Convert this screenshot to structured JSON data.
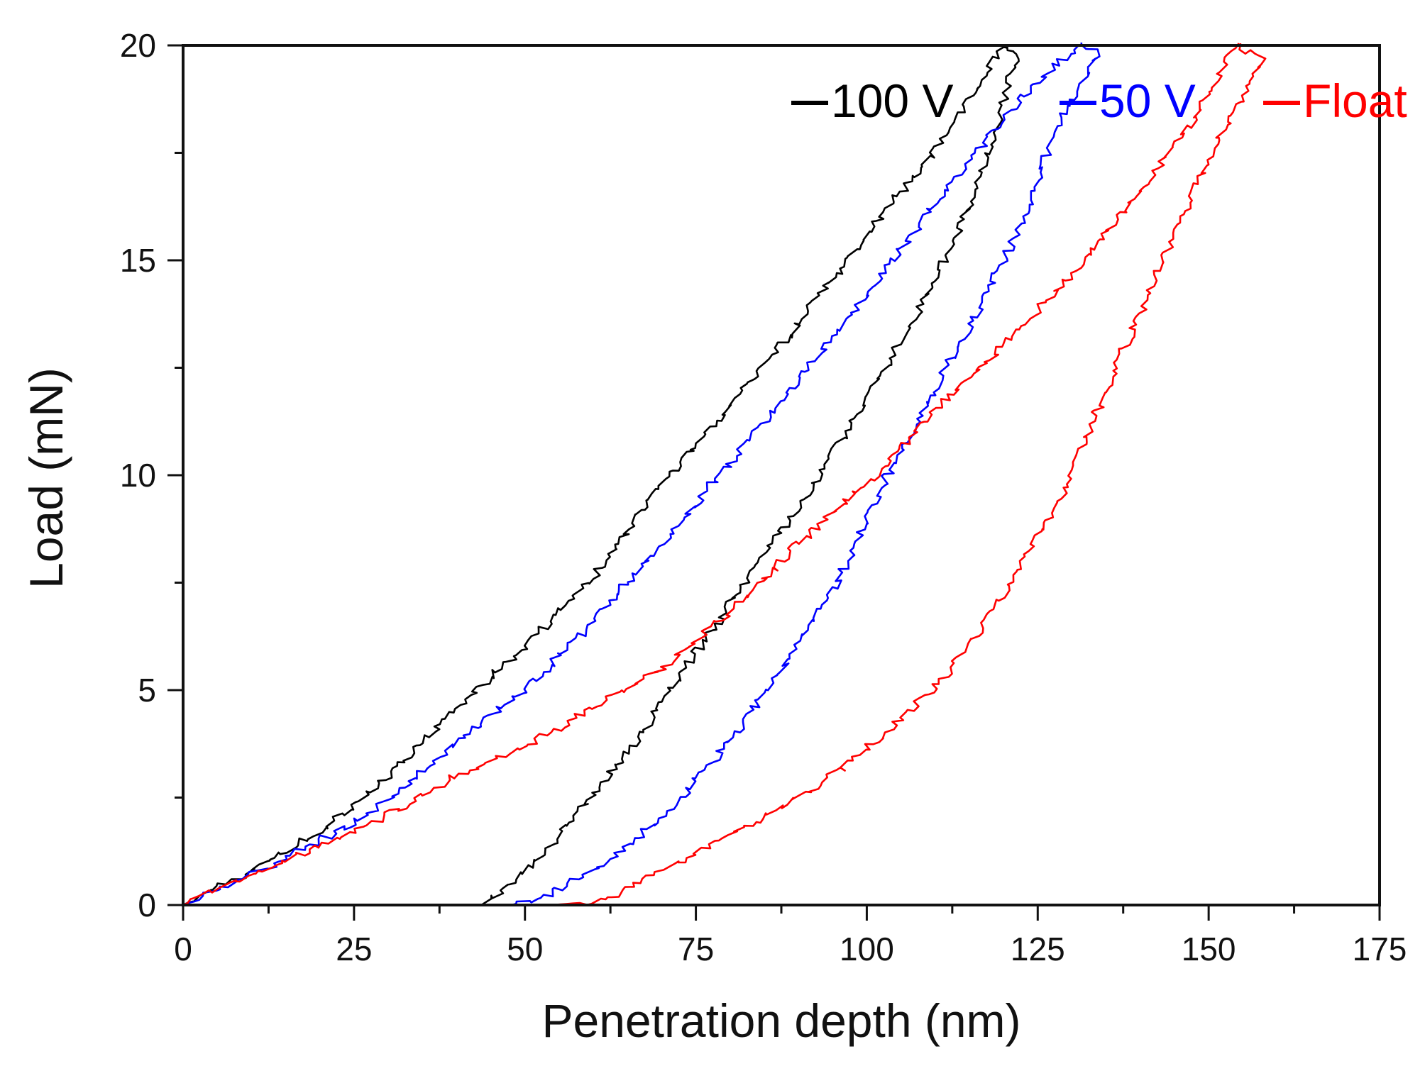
{
  "chart_data": {
    "type": "line",
    "title": "",
    "xlabel": "Penetration depth (nm)",
    "ylabel": "Load (mN)",
    "xlim": [
      0,
      175
    ],
    "ylim": [
      0,
      20
    ],
    "x_ticks": [
      "0",
      "25",
      "50",
      "75",
      "100",
      "125",
      "150",
      "175"
    ],
    "y_ticks": [
      "0",
      "5",
      "10",
      "15",
      "20"
    ],
    "grid": false,
    "legend_position": "top-right",
    "series": [
      {
        "name": "100 V",
        "legend_label": "100 V",
        "color": "#000000",
        "loading": [
          [
            0,
            0
          ],
          [
            10,
            0.8
          ],
          [
            20,
            1.7
          ],
          [
            30,
            3.0
          ],
          [
            40,
            4.6
          ],
          [
            50,
            6.0
          ],
          [
            60,
            7.6
          ],
          [
            70,
            9.8
          ],
          [
            80,
            11.6
          ],
          [
            90,
            13.5
          ],
          [
            100,
            15.6
          ],
          [
            110,
            17.6
          ],
          [
            117,
            19.2
          ],
          [
            120,
            20.0
          ]
        ],
        "unloading": [
          [
            120,
            20.0
          ],
          [
            122,
            19.8
          ],
          [
            119,
            18.2
          ],
          [
            115,
            16.3
          ],
          [
            110,
            14.5
          ],
          [
            103,
            12.6
          ],
          [
            95,
            10.5
          ],
          [
            87,
            8.6
          ],
          [
            80,
            7.0
          ],
          [
            72,
            5.2
          ],
          [
            65,
            3.5
          ],
          [
            56,
            1.8
          ],
          [
            48,
            0.5
          ],
          [
            44,
            0.0
          ],
          [
            39,
            0.0
          ]
        ]
      },
      {
        "name": "50 V",
        "legend_label": "50 V",
        "color": "#0000ff",
        "loading": [
          [
            0,
            0
          ],
          [
            10,
            0.7
          ],
          [
            20,
            1.5
          ],
          [
            30,
            2.4
          ],
          [
            40,
            3.8
          ],
          [
            50,
            5.0
          ],
          [
            60,
            6.6
          ],
          [
            70,
            8.4
          ],
          [
            80,
            10.3
          ],
          [
            90,
            12.2
          ],
          [
            100,
            14.2
          ],
          [
            110,
            16.3
          ],
          [
            120,
            18.3
          ],
          [
            128,
            19.6
          ],
          [
            131,
            20.0
          ]
        ],
        "unloading": [
          [
            131,
            20.0
          ],
          [
            134,
            19.8
          ],
          [
            128,
            18.2
          ],
          [
            123,
            16.0
          ],
          [
            117,
            14.0
          ],
          [
            110,
            12.0
          ],
          [
            103,
            10.0
          ],
          [
            96,
            7.6
          ],
          [
            89,
            5.8
          ],
          [
            81,
            4.0
          ],
          [
            72,
            2.3
          ],
          [
            62,
            1.0
          ],
          [
            53,
            0.2
          ],
          [
            48,
            0.0
          ]
        ]
      },
      {
        "name": "Float",
        "legend_label": "Float",
        "color": "#ff0000",
        "loading": [
          [
            0,
            0
          ],
          [
            10,
            0.7
          ],
          [
            20,
            1.4
          ],
          [
            30,
            2.1
          ],
          [
            40,
            3.0
          ],
          [
            50,
            3.7
          ],
          [
            60,
            4.6
          ],
          [
            70,
            5.5
          ],
          [
            80,
            6.8
          ],
          [
            90,
            8.4
          ],
          [
            100,
            9.8
          ],
          [
            110,
            11.5
          ],
          [
            120,
            13.0
          ],
          [
            130,
            14.7
          ],
          [
            140,
            16.6
          ],
          [
            148,
            18.3
          ],
          [
            154,
            20.0
          ]
        ],
        "unloading": [
          [
            154,
            20.0
          ],
          [
            158,
            19.7
          ],
          [
            152,
            18.0
          ],
          [
            146,
            16.0
          ],
          [
            140,
            13.8
          ],
          [
            134,
            11.6
          ],
          [
            128,
            9.3
          ],
          [
            120,
            7.2
          ],
          [
            112,
            5.4
          ],
          [
            103,
            4.0
          ],
          [
            92,
            2.7
          ],
          [
            80,
            1.6
          ],
          [
            70,
            0.8
          ],
          [
            62,
            0.1
          ],
          [
            54,
            0.0
          ]
        ]
      }
    ]
  }
}
